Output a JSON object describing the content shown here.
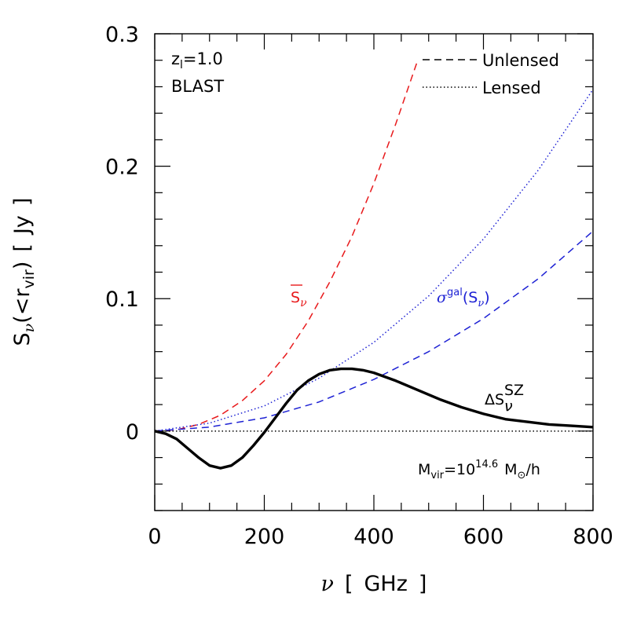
{
  "chart_data": {
    "type": "line",
    "xlim": [
      0,
      800
    ],
    "ylim": [
      -0.06,
      0.3
    ],
    "x_ticks": [
      "0",
      "200",
      "400",
      "600",
      "800"
    ],
    "y_ticks": [
      "0",
      "0.1",
      "0.2",
      "0.3"
    ],
    "xlabel": {
      "main": "ν",
      "bracket_open": "[",
      "unit": "GHz",
      "bracket_close": "]"
    },
    "ylabel": {
      "S": "S",
      "nu": "ν",
      "mid": "(<r",
      "vir": "vir",
      "close": ")",
      "bracket_open": "[",
      "unit": "Jy",
      "bracket_close": "]"
    },
    "legend": {
      "location": "top-right",
      "entries": [
        {
          "label": "Unlensed",
          "dash": "dashed"
        },
        {
          "label": "Lensed",
          "dash": "dotted"
        }
      ]
    },
    "info": {
      "redshift": {
        "z": "z",
        "sub": "l",
        "value": "=1.0"
      },
      "experiment": "BLAST",
      "mass": {
        "M": "M",
        "sub": "vir",
        "eq": "=10",
        "exp": "14.6",
        "unit": "M",
        "sun": "⊙",
        "per": "/h"
      }
    },
    "series": [
      {
        "label_main": "S",
        "label_sub": "ν",
        "color": "#e8191b",
        "dash": "dashed",
        "x": [
          0,
          40,
          80,
          120,
          160,
          200,
          240,
          280,
          320,
          360,
          400,
          440,
          480
        ],
        "y": [
          0,
          0.001,
          0.005,
          0.012,
          0.023,
          0.038,
          0.058,
          0.083,
          0.113,
          0.147,
          0.187,
          0.232,
          0.28
        ]
      },
      {
        "label_main": "σ",
        "label_sup": "gal",
        "label_paren_open": "(S",
        "label_sub": "ν",
        "label_paren_close": ")",
        "color": "#1e22d4",
        "dash": "dashed",
        "x": [
          0,
          100,
          200,
          300,
          400,
          500,
          600,
          700,
          800
        ],
        "y": [
          0,
          0.003,
          0.01,
          0.022,
          0.039,
          0.06,
          0.085,
          0.115,
          0.151
        ]
      },
      {
        "color": "#1e22d4",
        "dash": "dotted",
        "x": [
          0,
          100,
          200,
          300,
          400,
          500,
          600,
          700,
          800
        ],
        "y": [
          0,
          0.006,
          0.019,
          0.04,
          0.067,
          0.102,
          0.145,
          0.197,
          0.258
        ]
      },
      {
        "label_main": "ΔS",
        "label_sub": "ν",
        "label_sup": "SZ",
        "color": "#000000",
        "dash": "solid",
        "x": [
          0,
          20,
          40,
          60,
          80,
          100,
          120,
          140,
          160,
          180,
          200,
          220,
          240,
          260,
          280,
          300,
          320,
          340,
          360,
          380,
          400,
          440,
          480,
          520,
          560,
          600,
          640,
          680,
          720,
          760,
          800
        ],
        "y": [
          0,
          -0.002,
          -0.006,
          -0.013,
          -0.02,
          -0.026,
          -0.028,
          -0.026,
          -0.02,
          -0.011,
          -0.001,
          0.01,
          0.021,
          0.031,
          0.038,
          0.043,
          0.046,
          0.047,
          0.047,
          0.046,
          0.044,
          0.038,
          0.031,
          0.024,
          0.018,
          0.013,
          0.009,
          0.007,
          0.005,
          0.004,
          0.003
        ]
      },
      {
        "color": "#000000",
        "dash": "dotted",
        "x": [
          0,
          800
        ],
        "y": [
          0,
          0
        ]
      }
    ]
  }
}
